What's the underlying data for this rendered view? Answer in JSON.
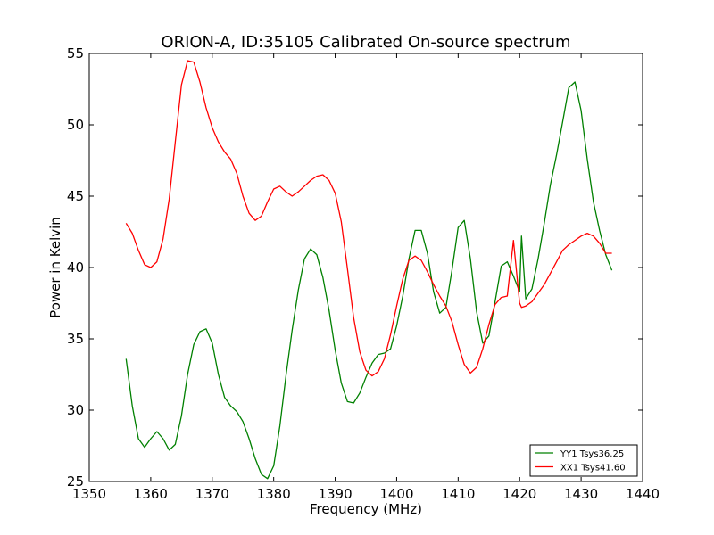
{
  "chart_data": {
    "type": "line",
    "title": "ORION-A, ID:35105 Calibrated On-source spectrum",
    "xlabel": "Frequency (MHz)",
    "ylabel": "Power in Kelvin",
    "xlim": [
      1350,
      1440
    ],
    "ylim": [
      25,
      55
    ],
    "xticks": [
      1350,
      1360,
      1370,
      1380,
      1390,
      1400,
      1410,
      1420,
      1430,
      1440
    ],
    "yticks": [
      25,
      30,
      35,
      40,
      45,
      50,
      55
    ],
    "grid": false,
    "legend_position": "lower-right",
    "series": [
      {
        "name": "YY1 Tsys36.25",
        "color": "#008000",
        "x": [
          1356,
          1357,
          1358,
          1359,
          1360,
          1361,
          1362,
          1363,
          1364,
          1365,
          1366,
          1367,
          1368,
          1369,
          1370,
          1371,
          1372,
          1373,
          1374,
          1375,
          1376,
          1377,
          1378,
          1379,
          1380,
          1381,
          1382,
          1383,
          1384,
          1385,
          1386,
          1387,
          1388,
          1389,
          1390,
          1391,
          1392,
          1393,
          1394,
          1395,
          1396,
          1397,
          1398,
          1399,
          1400,
          1401,
          1402,
          1403,
          1404,
          1405,
          1406,
          1407,
          1408,
          1409,
          1410,
          1411,
          1412,
          1413,
          1414,
          1415,
          1416,
          1417,
          1418,
          1419,
          1420,
          1420.3,
          1421,
          1422,
          1423,
          1424,
          1425,
          1426,
          1427,
          1428,
          1429,
          1430,
          1431,
          1432,
          1433,
          1434,
          1435
        ],
        "values": [
          33.6,
          30.3,
          28.0,
          27.4,
          28.0,
          28.5,
          28.0,
          27.2,
          27.6,
          29.6,
          32.5,
          34.6,
          35.5,
          35.7,
          34.7,
          32.5,
          30.9,
          30.3,
          29.9,
          29.2,
          28.0,
          26.6,
          25.5,
          25.2,
          26.1,
          28.9,
          32.4,
          35.6,
          38.4,
          40.6,
          41.3,
          40.9,
          39.3,
          37.0,
          34.2,
          31.9,
          30.6,
          30.5,
          31.2,
          32.3,
          33.3,
          33.9,
          34.0,
          34.3,
          35.9,
          38.0,
          40.6,
          42.6,
          42.6,
          41.0,
          38.3,
          36.8,
          37.2,
          39.8,
          42.8,
          43.3,
          40.6,
          36.9,
          34.7,
          35.2,
          37.6,
          40.1,
          40.4,
          39.4,
          38.3,
          42.2,
          37.8,
          38.5,
          40.6,
          43.1,
          45.8,
          47.9,
          50.2,
          52.6,
          53.0,
          51.0,
          47.6,
          44.6,
          42.6,
          40.9,
          39.8
        ]
      },
      {
        "name": "XX1 Tsys41.60",
        "color": "#ff0000",
        "x": [
          1356,
          1357,
          1358,
          1359,
          1360,
          1361,
          1362,
          1363,
          1364,
          1365,
          1366,
          1367,
          1368,
          1369,
          1370,
          1371,
          1372,
          1373,
          1374,
          1375,
          1376,
          1377,
          1378,
          1379,
          1380,
          1381,
          1382,
          1383,
          1384,
          1385,
          1386,
          1387,
          1388,
          1389,
          1390,
          1391,
          1392,
          1393,
          1394,
          1395,
          1396,
          1397,
          1398,
          1399,
          1400,
          1401,
          1402,
          1403,
          1404,
          1405,
          1406,
          1407,
          1408,
          1409,
          1410,
          1411,
          1412,
          1413,
          1414,
          1415,
          1416,
          1417,
          1418,
          1419,
          1420,
          1420.3,
          1421,
          1422,
          1423,
          1424,
          1425,
          1426,
          1427,
          1428,
          1429,
          1430,
          1431,
          1432,
          1433,
          1434,
          1435
        ],
        "values": [
          43.1,
          42.4,
          41.2,
          40.2,
          40.0,
          40.4,
          42.0,
          44.8,
          48.8,
          52.8,
          54.5,
          54.4,
          53.0,
          51.2,
          49.8,
          48.8,
          48.1,
          47.6,
          46.6,
          45.0,
          43.8,
          43.3,
          43.6,
          44.6,
          45.5,
          45.7,
          45.3,
          45.0,
          45.3,
          45.7,
          46.1,
          46.4,
          46.5,
          46.1,
          45.2,
          43.2,
          39.9,
          36.5,
          34.1,
          32.8,
          32.4,
          32.7,
          33.6,
          35.3,
          37.3,
          39.2,
          40.5,
          40.8,
          40.5,
          39.7,
          38.8,
          38.0,
          37.3,
          36.2,
          34.6,
          33.2,
          32.6,
          33.0,
          34.3,
          36.0,
          37.4,
          37.9,
          38.0,
          41.9,
          37.5,
          37.2,
          37.3,
          37.6,
          38.2,
          38.8,
          39.6,
          40.4,
          41.2,
          41.6,
          41.9,
          42.2,
          42.4,
          42.2,
          41.7,
          41.0,
          41.0
        ],
        "__pad": null
      }
    ]
  }
}
